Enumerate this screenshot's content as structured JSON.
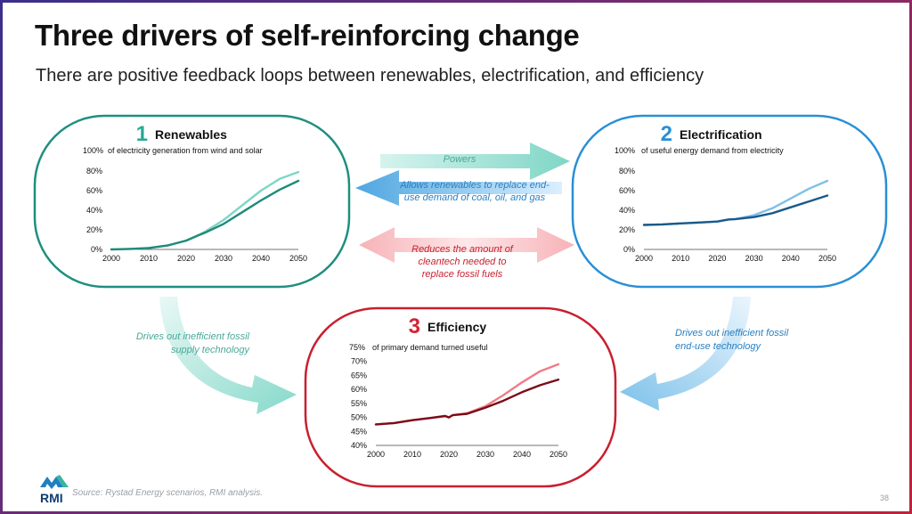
{
  "slide": {
    "title": "Three drivers of self-reinforcing change",
    "subtitle": "There are positive feedback loops between renewables, electrification, and efficiency",
    "source": "Source: Rystad Energy scenarios, RMI analysis.",
    "page_number": "38",
    "logo_text": "RMI"
  },
  "arrows": {
    "powers": "Powers",
    "allows": [
      "Allows renewables to replace end-",
      "use demand of coal, oil, and gas"
    ],
    "reduces": [
      "Reduces the amount of",
      "cleantech needed to",
      "replace fossil fuels"
    ],
    "drives_supply": [
      "Drives out inefficient fossil",
      "supply technology"
    ],
    "drives_enduse": [
      "Drives out inefficient fossil",
      "end-use technology"
    ]
  },
  "colors": {
    "renewables_dark": "#1f8a7a",
    "renewables_light": "#7fd6c6",
    "electrification_dark": "#1a5a8a",
    "electrification_light": "#7fbfe8",
    "efficiency_dark": "#7a0c18",
    "efficiency_light": "#ef7c86",
    "teal_arrow": "#9ee3d6",
    "blue_arrow": "#8cc8ec",
    "red_arrow": "#f6b3b8"
  },
  "chart_data": [
    {
      "type": "line",
      "number": "1",
      "title": "Renewables",
      "unit_label": "of electricity generation from wind and solar",
      "ylim": [
        0,
        100
      ],
      "yticks": [
        "0%",
        "20%",
        "40%",
        "60%",
        "80%",
        "100%"
      ],
      "xticks": [
        "2000",
        "2010",
        "2020",
        "2030",
        "2040",
        "2050"
      ],
      "series": [
        {
          "values": [
            [
              2000,
              0
            ],
            [
              2005,
              0.5
            ],
            [
              2010,
              1.5
            ],
            [
              2015,
              4
            ],
            [
              2020,
              9
            ],
            [
              2023,
              14
            ],
            [
              2025,
              18
            ],
            [
              2030,
              30
            ],
            [
              2035,
              45
            ],
            [
              2040,
              60
            ],
            [
              2045,
              72
            ],
            [
              2050,
              79
            ]
          ]
        },
        {
          "values": [
            [
              2000,
              0
            ],
            [
              2005,
              0.5
            ],
            [
              2010,
              1.5
            ],
            [
              2015,
              4
            ],
            [
              2020,
              9
            ],
            [
              2023,
              14
            ],
            [
              2025,
              17
            ],
            [
              2030,
              26
            ],
            [
              2035,
              38
            ],
            [
              2040,
              50
            ],
            [
              2045,
              61
            ],
            [
              2050,
              70
            ]
          ]
        }
      ]
    },
    {
      "type": "line",
      "number": "2",
      "title": "Electrification",
      "unit_label": "of useful energy demand from electricity",
      "ylim": [
        0,
        100
      ],
      "yticks": [
        "0%",
        "20%",
        "40%",
        "60%",
        "80%",
        "100%"
      ],
      "xticks": [
        "2000",
        "2010",
        "2020",
        "2030",
        "2040",
        "2050"
      ],
      "series": [
        {
          "values": [
            [
              2000,
              25
            ],
            [
              2005,
              25.5
            ],
            [
              2010,
              26.5
            ],
            [
              2015,
              27.5
            ],
            [
              2020,
              28.5
            ],
            [
              2023,
              30.5
            ],
            [
              2025,
              31
            ],
            [
              2030,
              35
            ],
            [
              2035,
              42
            ],
            [
              2040,
              52
            ],
            [
              2045,
              62
            ],
            [
              2050,
              70
            ]
          ]
        },
        {
          "values": [
            [
              2000,
              25
            ],
            [
              2005,
              25.5
            ],
            [
              2010,
              26.5
            ],
            [
              2015,
              27.5
            ],
            [
              2020,
              28.5
            ],
            [
              2023,
              30.5
            ],
            [
              2025,
              31
            ],
            [
              2030,
              33
            ],
            [
              2035,
              37
            ],
            [
              2040,
              43
            ],
            [
              2045,
              49
            ],
            [
              2050,
              55
            ]
          ]
        }
      ]
    },
    {
      "type": "line",
      "number": "3",
      "title": "Efficiency",
      "unit_label": "of primary demand turned useful",
      "ylim": [
        40,
        75
      ],
      "yticks": [
        "40%",
        "45%",
        "50%",
        "55%",
        "60%",
        "65%",
        "70%",
        "75%"
      ],
      "xticks": [
        "2000",
        "2010",
        "2020",
        "2030",
        "2040",
        "2050"
      ],
      "series": [
        {
          "values": [
            [
              2000,
              47.5
            ],
            [
              2005,
              48
            ],
            [
              2010,
              49
            ],
            [
              2015,
              49.8
            ],
            [
              2019,
              50.5
            ],
            [
              2020,
              50
            ],
            [
              2021,
              50.8
            ],
            [
              2025,
              51.5
            ],
            [
              2030,
              54
            ],
            [
              2035,
              58
            ],
            [
              2040,
              62.5
            ],
            [
              2045,
              66.5
            ],
            [
              2050,
              69
            ]
          ]
        },
        {
          "values": [
            [
              2000,
              47.5
            ],
            [
              2005,
              48
            ],
            [
              2010,
              49
            ],
            [
              2015,
              49.8
            ],
            [
              2019,
              50.5
            ],
            [
              2020,
              50
            ],
            [
              2021,
              50.8
            ],
            [
              2025,
              51.3
            ],
            [
              2030,
              53.5
            ],
            [
              2035,
              56
            ],
            [
              2040,
              59
            ],
            [
              2045,
              61.5
            ],
            [
              2050,
              63.5
            ]
          ]
        }
      ]
    }
  ]
}
